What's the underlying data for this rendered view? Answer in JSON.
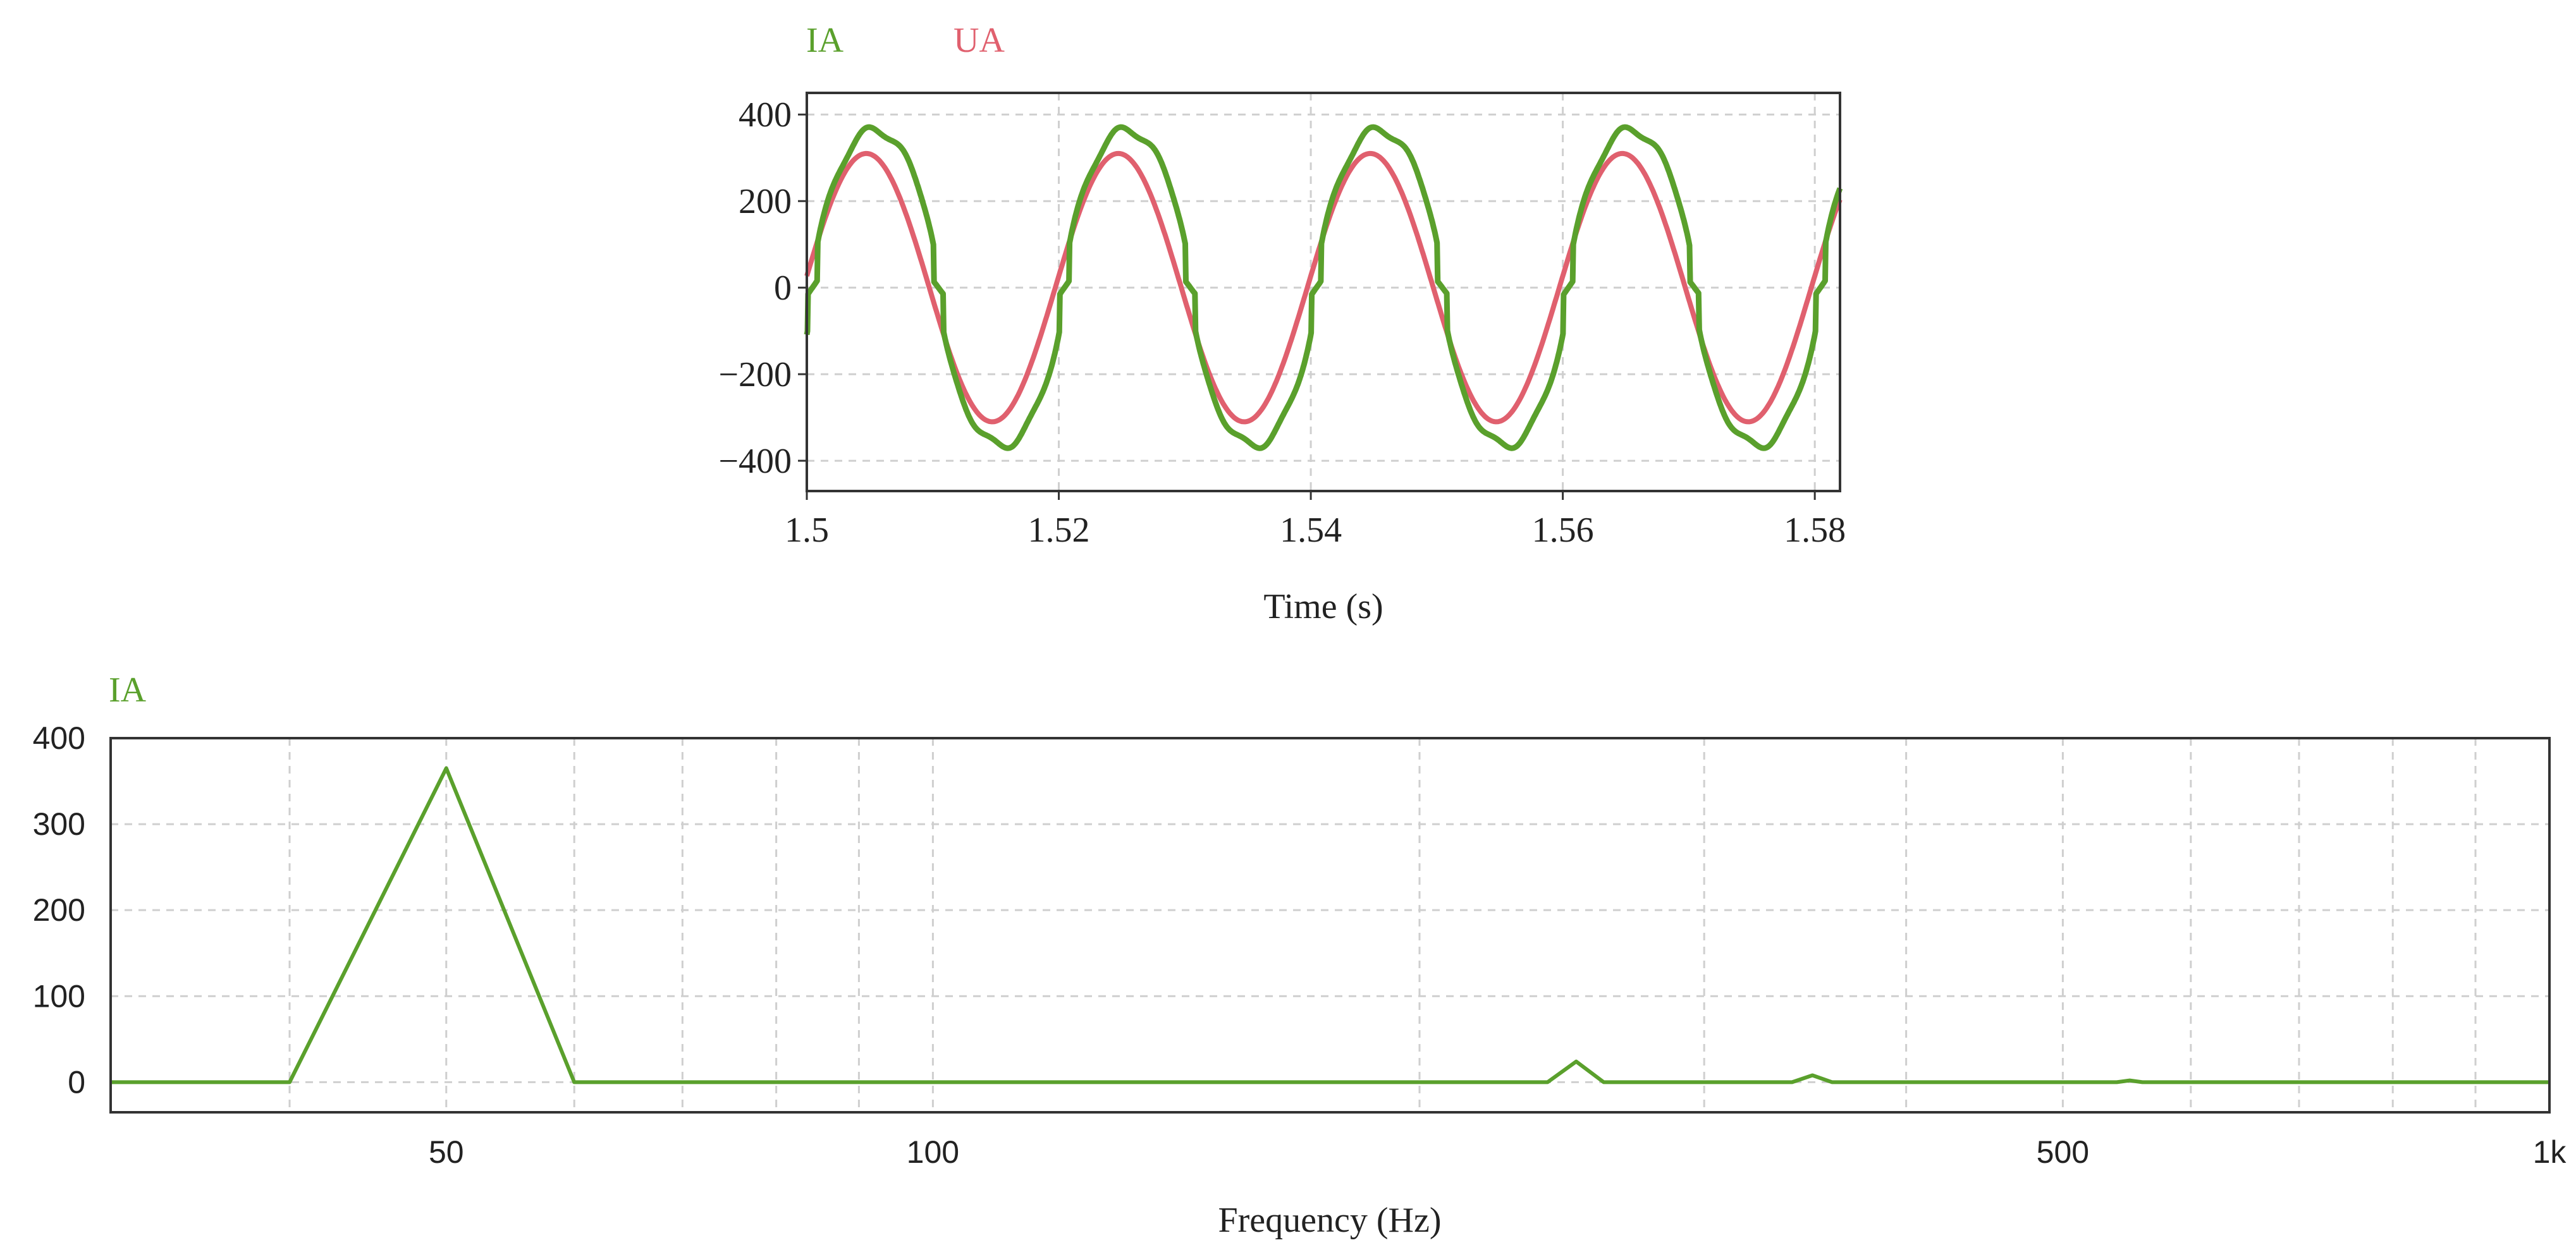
{
  "colors": {
    "ia": "#5aa02c",
    "ua": "#e0606e",
    "grid": "#cfcfcf",
    "frame": "#333333"
  },
  "chart_data": [
    {
      "type": "line",
      "xlabel": "Time (s)",
      "ylabel": "",
      "xlim": [
        1.5,
        1.582
      ],
      "ylim": [
        -470,
        450
      ],
      "xticks": [
        1.5,
        1.52,
        1.54,
        1.56,
        1.58
      ],
      "xtick_labels": [
        "1.5",
        "1.52",
        "1.54",
        "1.56",
        "1.58"
      ],
      "yticks": [
        400,
        200,
        0,
        -200,
        -400
      ],
      "ytick_labels": [
        "400",
        "200",
        "0",
        "−200",
        "−400"
      ],
      "grid": true,
      "legend_position": "top-left",
      "series": [
        {
          "name": "IA",
          "color": "#5aa02c",
          "amplitude": 365,
          "frequency_hz": 50,
          "phase_deg": -8,
          "waveform": "flattened sine with notches near zero crossings"
        },
        {
          "name": "UA",
          "color": "#e0606e",
          "amplitude": 310,
          "frequency_hz": 50,
          "phase_deg": 5,
          "waveform": "sine"
        }
      ]
    },
    {
      "type": "line",
      "xlabel": "Frequency (Hz)",
      "ylabel": "",
      "xscale": "log",
      "xlim": [
        31,
        1000
      ],
      "ylim": [
        -35,
        400
      ],
      "xticks": [
        50,
        100,
        500,
        1000
      ],
      "xtick_labels": [
        "50",
        "100",
        "500",
        "1k"
      ],
      "yticks": [
        400,
        300,
        200,
        100,
        0
      ],
      "ytick_labels": [
        "400",
        "300",
        "200",
        "100",
        "0"
      ],
      "grid": true,
      "legend_position": "top-left",
      "series": [
        {
          "name": "IA",
          "color": "#5aa02c",
          "x": [
            31,
            40,
            50,
            60,
            240,
            250,
            260,
            340,
            350,
            360,
            540,
            550,
            560,
            1000
          ],
          "y": [
            0,
            0,
            365,
            0,
            0,
            24,
            0,
            0,
            8,
            0,
            0,
            2,
            0,
            0
          ]
        }
      ]
    }
  ]
}
